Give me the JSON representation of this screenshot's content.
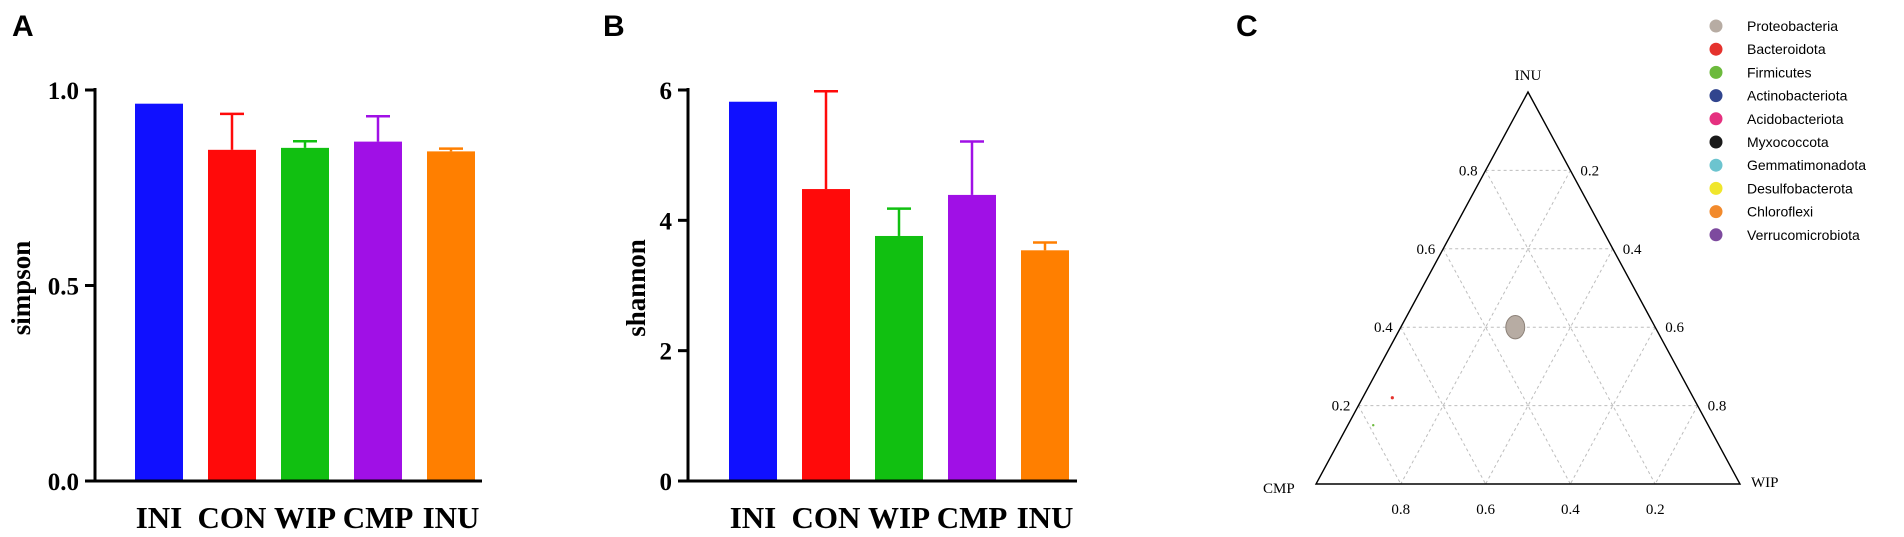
{
  "panels": {
    "a": "A",
    "b": "B",
    "c": "C"
  },
  "chart_data": [
    {
      "type": "bar",
      "panel": "A",
      "categories": [
        "INI",
        "CON",
        "WIP",
        "CMP",
        "INU"
      ],
      "values": [
        0.965,
        0.847,
        0.852,
        0.868,
        0.843
      ],
      "errors": [
        0.0,
        0.092,
        0.017,
        0.065,
        0.007
      ],
      "colors": [
        "#1010ff",
        "#ff0a0a",
        "#11c011",
        "#a010e6",
        "#ff7f00"
      ],
      "ylabel": "simpson",
      "ylim": [
        0,
        1.0
      ],
      "yticks": [
        0.0,
        0.5,
        1.0
      ],
      "ytick_labels": [
        "0.0",
        "0.5",
        "1.0"
      ]
    },
    {
      "type": "bar",
      "panel": "B",
      "categories": [
        "INI",
        "CON",
        "WIP",
        "CMP",
        "INU"
      ],
      "values": [
        5.82,
        4.48,
        3.76,
        4.39,
        3.54
      ],
      "errors": [
        0.0,
        1.5,
        0.42,
        0.82,
        0.12
      ],
      "colors": [
        "#1010ff",
        "#ff0a0a",
        "#11c011",
        "#a010e6",
        "#ff7f00"
      ],
      "ylabel": "shannon",
      "ylim": [
        0,
        6
      ],
      "yticks": [
        0,
        2,
        4,
        6
      ],
      "ytick_labels": [
        "0",
        "2",
        "4",
        "6"
      ]
    },
    {
      "type": "scatter",
      "subtype": "ternary",
      "panel": "C",
      "axes": {
        "top": "INU",
        "left": "CMP",
        "right": "WIP"
      },
      "tick_values": [
        0.2,
        0.4,
        0.6,
        0.8
      ],
      "tick_labels": [
        "0.2",
        "0.4",
        "0.6",
        "0.8"
      ],
      "series": [
        {
          "name": "Proteobacteria",
          "color": "#b7aca3",
          "INU": 0.4,
          "CMP": 0.33,
          "WIP": 0.27,
          "size": 9
        },
        {
          "name": "Bacteroidota",
          "color": "#e5322d",
          "INU": 0.22,
          "CMP": 0.71,
          "WIP": 0.07,
          "size": 1.6
        },
        {
          "name": "Firmicutes",
          "color": "#6cba3c",
          "INU": 0.15,
          "CMP": 0.79,
          "WIP": 0.06,
          "size": 1.2
        },
        {
          "name": "Actinobacteriota",
          "color": "#31458e"
        },
        {
          "name": "Acidobacteriota",
          "color": "#e5307f"
        },
        {
          "name": "Myxococcota",
          "color": "#1a1a1a"
        },
        {
          "name": "Gemmatimonadota",
          "color": "#6cc4cf"
        },
        {
          "name": "Desulfobacterota",
          "color": "#f0e62c"
        },
        {
          "name": "Chloroflexi",
          "color": "#f28a2c"
        },
        {
          "name": "Verrucomicrobiota",
          "color": "#7d4a9e"
        }
      ]
    }
  ]
}
